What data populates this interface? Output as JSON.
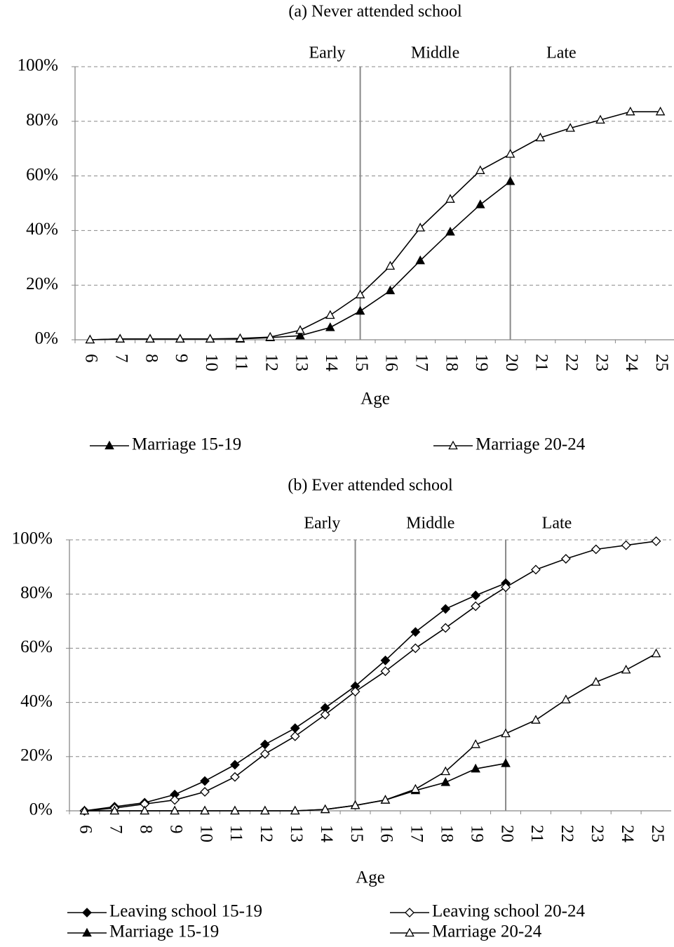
{
  "chart_data": [
    {
      "type": "line",
      "title": "(a) Never attended school",
      "xlabel": "Age",
      "x": [
        6,
        7,
        8,
        9,
        10,
        11,
        12,
        13,
        14,
        15,
        16,
        17,
        18,
        19,
        20,
        21,
        22,
        23,
        24,
        25
      ],
      "ylim": [
        0,
        100
      ],
      "yticks": [
        {
          "value": 0,
          "label": "0%"
        },
        {
          "value": 20,
          "label": "20%"
        },
        {
          "value": 40,
          "label": "40%"
        },
        {
          "value": 60,
          "label": "60%"
        },
        {
          "value": 80,
          "label": "80%"
        },
        {
          "value": 100,
          "label": "100%"
        }
      ],
      "grid": true,
      "vlines": [
        15,
        20
      ],
      "phase_labels": [
        "Early",
        "Middle",
        "Late"
      ],
      "series": [
        {
          "name": "Marriage 15-19",
          "color": "#000000",
          "marker": "triangle",
          "filled": true,
          "values": [
            0,
            0.3,
            0.3,
            0.3,
            0.3,
            0.3,
            0.8,
            1.5,
            4.5,
            10.5,
            18,
            29,
            39.5,
            49.5,
            58,
            null,
            null,
            null,
            null,
            null
          ]
        },
        {
          "name": "Marriage 20-24",
          "color": "#000000",
          "marker": "triangle",
          "filled": false,
          "values": [
            0,
            0.3,
            0.3,
            0.3,
            0.3,
            0.5,
            1,
            3.5,
            9,
            16.5,
            27,
            41,
            51.5,
            62,
            68,
            74,
            77.5,
            80.5,
            83.5,
            83.5
          ]
        }
      ]
    },
    {
      "type": "line",
      "title": "(b) Ever attended school",
      "xlabel": "Age",
      "x": [
        6,
        7,
        8,
        9,
        10,
        11,
        12,
        13,
        14,
        15,
        16,
        17,
        18,
        19,
        20,
        21,
        22,
        23,
        24,
        25
      ],
      "ylim": [
        0,
        100
      ],
      "yticks": [
        {
          "value": 0,
          "label": "0%"
        },
        {
          "value": 20,
          "label": "20%"
        },
        {
          "value": 40,
          "label": "40%"
        },
        {
          "value": 60,
          "label": "60%"
        },
        {
          "value": 80,
          "label": "80%"
        },
        {
          "value": 100,
          "label": "100%"
        }
      ],
      "grid": true,
      "vlines": [
        15,
        20
      ],
      "phase_labels": [
        "Early",
        "Middle",
        "Late"
      ],
      "series": [
        {
          "name": "Leaving school 15-19",
          "color": "#000000",
          "marker": "diamond",
          "filled": true,
          "values": [
            0,
            1.5,
            3,
            6,
            11,
            17,
            24.5,
            30.5,
            38,
            46,
            55.5,
            66,
            74.5,
            79.5,
            84,
            null,
            null,
            null,
            null,
            null
          ]
        },
        {
          "name": "Leaving school 20-24",
          "color": "#000000",
          "marker": "diamond",
          "filled": false,
          "values": [
            0,
            1,
            2.5,
            4,
            7,
            12.5,
            21,
            27.5,
            35.5,
            44,
            51.5,
            60,
            67.5,
            75.5,
            82.5,
            89,
            93,
            96.5,
            98,
            99.5
          ]
        },
        {
          "name": "Marriage 15-19",
          "color": "#000000",
          "marker": "triangle",
          "filled": true,
          "values": [
            0,
            0,
            0,
            0,
            0,
            0,
            0,
            0,
            0.5,
            2,
            4,
            7.5,
            10.5,
            15.5,
            17.5,
            null,
            null,
            null,
            null,
            null
          ]
        },
        {
          "name": "Marriage 20-24",
          "color": "#000000",
          "marker": "triangle",
          "filled": false,
          "values": [
            0,
            0,
            0,
            0,
            0,
            0,
            0,
            0,
            0.5,
            2,
            4,
            8,
            14.5,
            24.5,
            28.5,
            33.5,
            41,
            47.5,
            52,
            58
          ]
        }
      ]
    }
  ]
}
